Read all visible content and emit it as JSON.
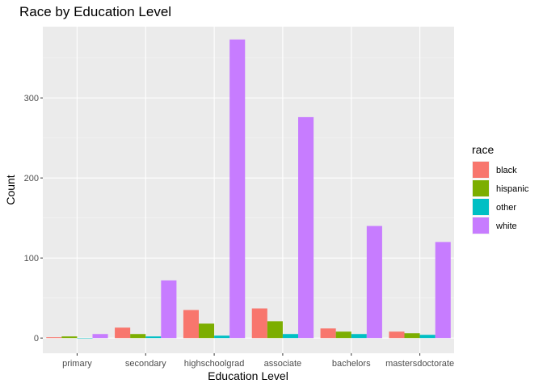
{
  "chart_data": {
    "type": "bar",
    "title": "Race by Education Level",
    "xlabel": "Education Level",
    "ylabel": "Count",
    "categories": [
      "primary",
      "secondary",
      "highschoolgrad",
      "associate",
      "bachelors",
      "mastersdoctorate"
    ],
    "series": [
      {
        "name": "black",
        "color": "#F8766D",
        "values": [
          1,
          13,
          35,
          37,
          12,
          8
        ]
      },
      {
        "name": "hispanic",
        "color": "#7CAE00",
        "values": [
          2,
          5,
          18,
          21,
          8,
          6
        ]
      },
      {
        "name": "other",
        "color": "#00BFC4",
        "values": [
          0,
          2,
          3,
          5,
          5,
          4
        ]
      },
      {
        "name": "white",
        "color": "#C77CFF",
        "values": [
          5,
          72,
          373,
          276,
          140,
          120
        ]
      }
    ],
    "ylim": [
      -19,
      389
    ],
    "yticks": [
      0,
      100,
      200,
      300
    ],
    "grid": true,
    "legend": {
      "title": "race",
      "position": "right"
    }
  }
}
